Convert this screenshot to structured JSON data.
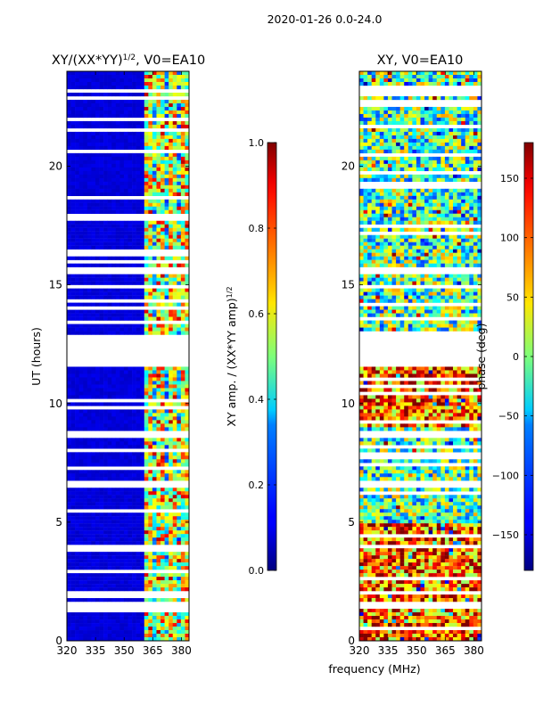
{
  "figure": {
    "suptitle": "2020-01-26 0.0-24.0",
    "xlabel": "frequency (MHz)"
  },
  "chart_data": [
    {
      "type": "heatmap",
      "title_main": "XY/(XX*YY)",
      "title_exp": "1/2",
      "title_suffix": ", V0=EA10",
      "ylabel": "UT (hours)",
      "xlim": [
        320,
        384
      ],
      "ylim": [
        0,
        24
      ],
      "xticks": [
        320,
        335,
        350,
        365,
        380
      ],
      "yticks": [
        0,
        5,
        10,
        15,
        20
      ],
      "colorbar": {
        "label_main": "XY amp. / (XX*YY amp)",
        "label_exp": "1/2",
        "range": [
          0.0,
          1.0
        ],
        "ticks": [
          "0.0",
          "0.2",
          "0.4",
          "0.6",
          "0.8",
          "1.0"
        ],
        "tick_values": [
          0.0,
          0.2,
          0.4,
          0.6,
          0.8,
          1.0
        ]
      },
      "data_gaps_hours": [
        [
          11.6,
          12.9
        ],
        [
          15.4,
          15.8
        ],
        [
          8.6,
          8.8
        ],
        [
          6.5,
          6.7
        ],
        [
          1.4,
          1.6
        ]
      ],
      "active_band_mhz": [
        361,
        383
      ]
    },
    {
      "type": "heatmap",
      "title_main": "XY, V0=EA10",
      "ylabel": "",
      "xlim": [
        320,
        384
      ],
      "ylim": [
        0,
        24
      ],
      "xticks": [
        320,
        335,
        350,
        365,
        380
      ],
      "yticks": [
        0,
        5,
        10,
        15,
        20
      ],
      "colorbar": {
        "label_main": "phase (deg)",
        "range": [
          -180,
          180
        ],
        "ticks": [
          "150",
          "100",
          "50",
          "0",
          "−50",
          "−100",
          "−150"
        ],
        "tick_values": [
          150,
          100,
          50,
          0,
          -50,
          -100,
          -150
        ]
      },
      "data_gaps_hours": [
        [
          11.6,
          12.9
        ],
        [
          15.4,
          15.8
        ],
        [
          8.6,
          8.8
        ],
        [
          6.5,
          6.7
        ],
        [
          1.4,
          1.6
        ]
      ]
    }
  ]
}
